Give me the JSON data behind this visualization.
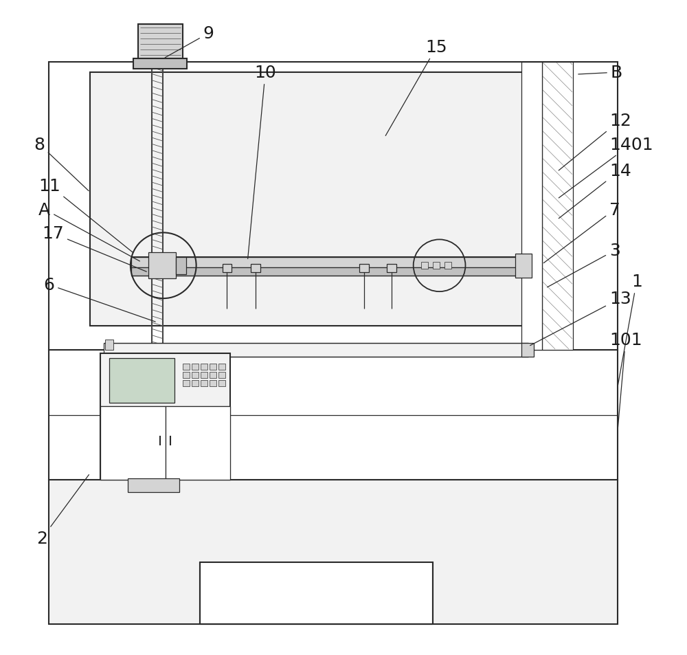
{
  "bg_color": "#ffffff",
  "line_color": "#2a2a2a",
  "lw": 1.5,
  "tlw": 0.9,
  "fs": 18,
  "gray1": "#e8e8e8",
  "gray2": "#d4d4d4",
  "gray3": "#c0c0c0",
  "gray4": "#f2f2f2"
}
